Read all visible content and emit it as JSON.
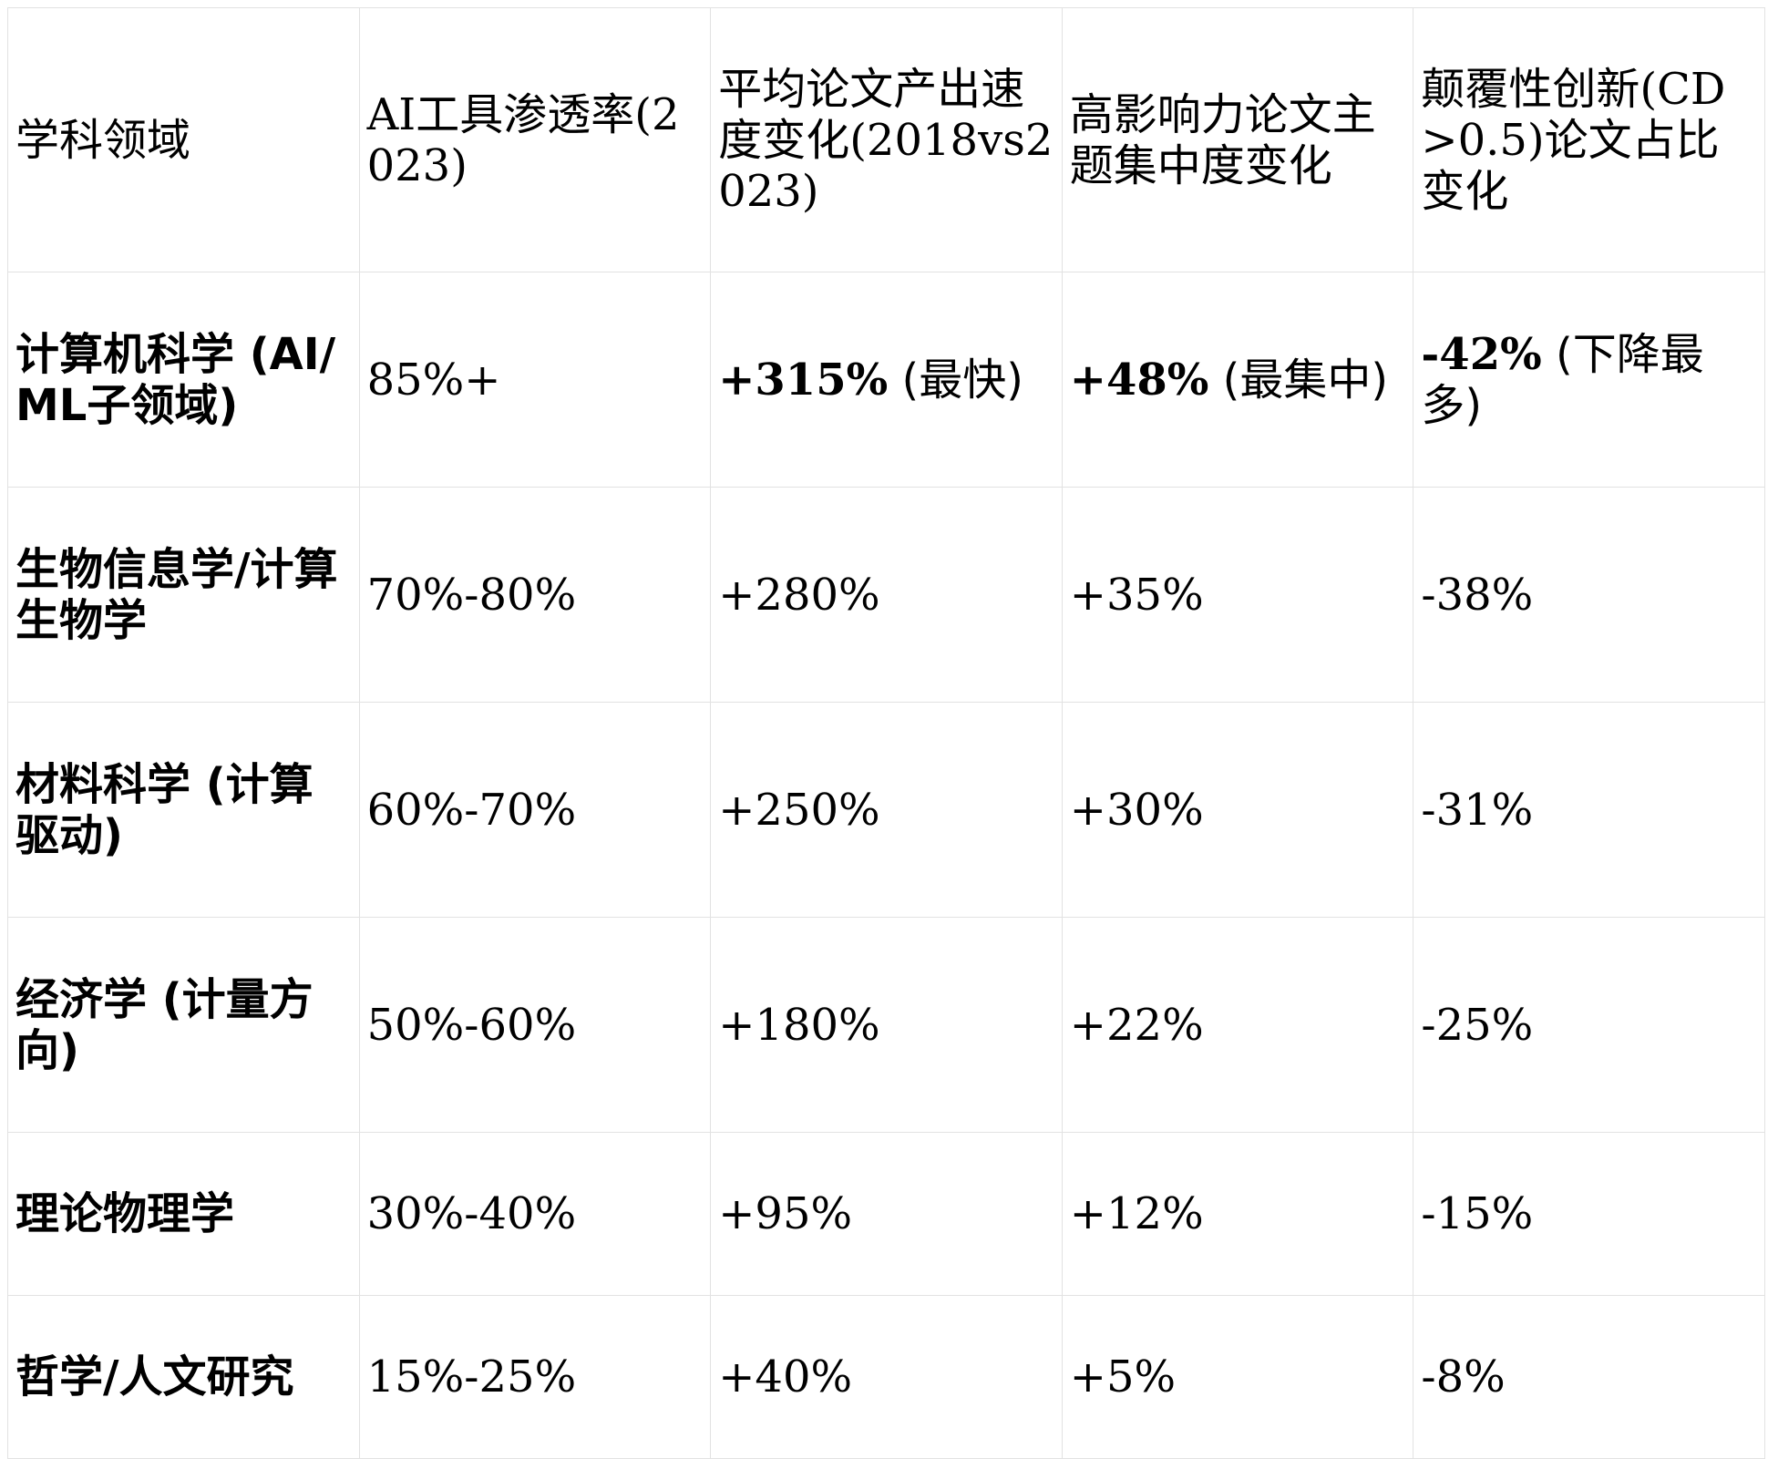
{
  "table": {
    "headers": [
      "学科领域",
      "AI工具渗透率(2023)",
      "平均论文产出速度变化(2018vs2023)",
      "高影响力论文主题集中度变化",
      "颠覆性创新(CD>0.5)论文占比变化"
    ],
    "rows": [
      {
        "field": "计算机科学 (AI/ML子领域)",
        "penetration": "85%+",
        "speed": "+315%",
        "speed_note": "(最快)",
        "concentration": "+48%",
        "concentration_note": "(最集中)",
        "disruptive": "-42%",
        "disruptive_note": "(下降最多)"
      },
      {
        "field": "生物信息学/计算生物学",
        "penetration": "70%-80%",
        "speed": "+280%",
        "concentration": "+35%",
        "disruptive": "-38%"
      },
      {
        "field": "材料科学 (计算驱动)",
        "penetration": "60%-70%",
        "speed": "+250%",
        "concentration": "+30%",
        "disruptive": "-31%"
      },
      {
        "field": "经济学 (计量方向)",
        "penetration": "50%-60%",
        "speed": "+180%",
        "concentration": "+22%",
        "disruptive": "-25%"
      },
      {
        "field": "理论物理学",
        "penetration": "30%-40%",
        "speed": "+95%",
        "concentration": "+12%",
        "disruptive": "-15%"
      },
      {
        "field": "哲学/人文研究",
        "penetration": "15%-25%",
        "speed": "+40%",
        "concentration": "+5%",
        "disruptive": "-8%"
      }
    ]
  },
  "colors": {
    "text": "#000000",
    "border": "#e2e2e2",
    "background": "#ffffff"
  }
}
